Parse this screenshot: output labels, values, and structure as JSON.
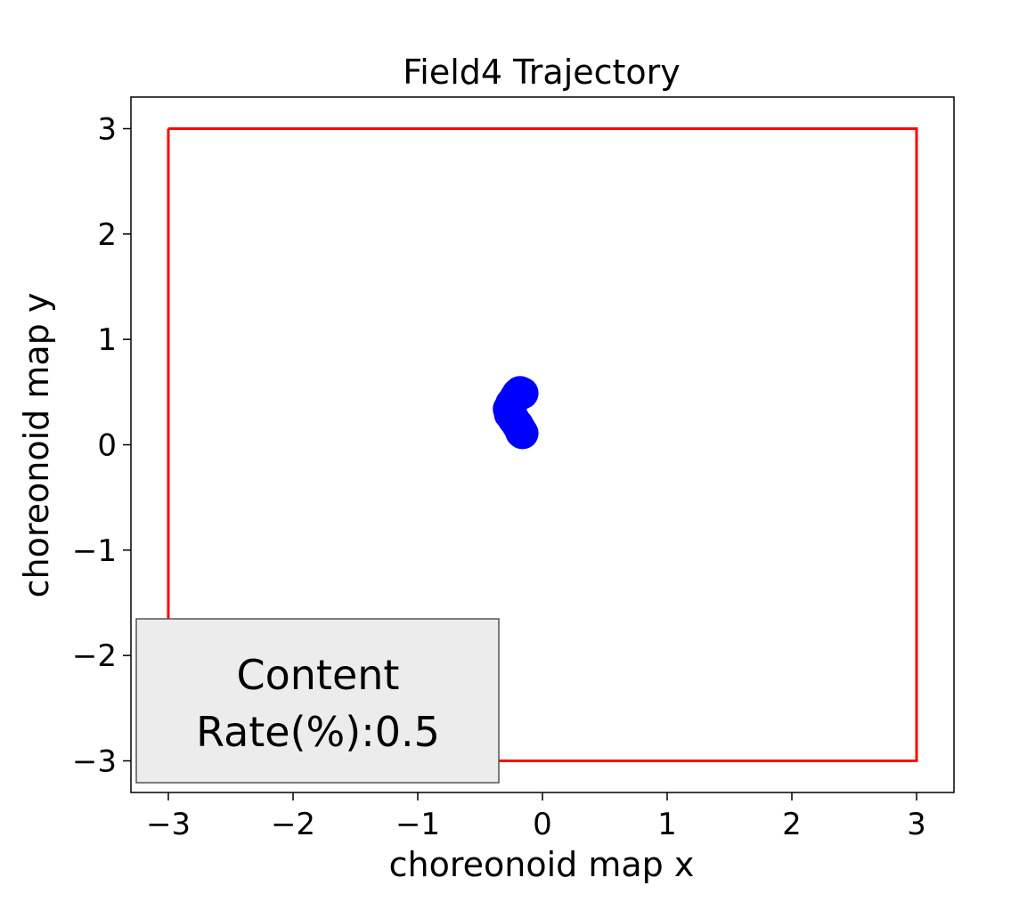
{
  "chart_data": {
    "type": "scatter",
    "title": "Field4 Trajectory",
    "xlabel": "choreonoid map x",
    "ylabel": "choreonoid map y",
    "xlim": [
      -3.3,
      3.3
    ],
    "ylim": [
      -3.3,
      3.3
    ],
    "x_ticks": [
      -3,
      -2,
      -1,
      0,
      1,
      2,
      3
    ],
    "y_ticks": [
      -3,
      -2,
      -1,
      0,
      1,
      2,
      3
    ],
    "x_tick_labels": [
      "−3",
      "−2",
      "−1",
      "0",
      "1",
      "2",
      "3"
    ],
    "y_tick_labels": [
      "−3",
      "−2",
      "−1",
      "0",
      "1",
      "2",
      "3"
    ],
    "grid": false,
    "boundary": {
      "color": "#ff0000",
      "points": [
        [
          -3,
          3
        ],
        [
          3,
          3
        ],
        [
          3,
          -3
        ],
        [
          -3,
          -3
        ],
        [
          -3,
          3
        ]
      ]
    },
    "trajectory": {
      "color": "#0000ff",
      "points": [
        [
          -0.16,
          0.49
        ],
        [
          -0.18,
          0.5
        ],
        [
          -0.2,
          0.48
        ],
        [
          -0.22,
          0.44
        ],
        [
          -0.25,
          0.39
        ],
        [
          -0.27,
          0.34
        ],
        [
          -0.26,
          0.29
        ],
        [
          -0.23,
          0.24
        ],
        [
          -0.2,
          0.19
        ],
        [
          -0.18,
          0.15
        ],
        [
          -0.17,
          0.12
        ],
        [
          -0.16,
          0.11
        ]
      ]
    },
    "annotation": {
      "line1": "Content",
      "line2": "Rate(%):0.5",
      "background": "#ececec",
      "placement": "bottom-left"
    }
  }
}
